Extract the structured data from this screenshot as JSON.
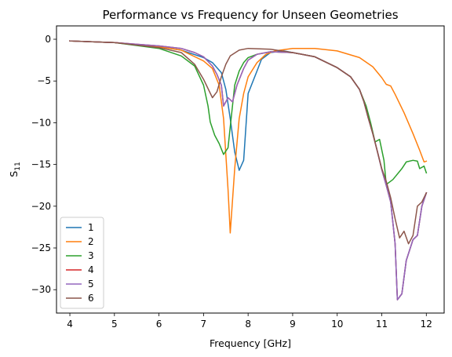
{
  "chart_data": {
    "type": "line",
    "title": "Performance vs Frequency for Unseen Geometries",
    "xlabel": "Frequency [GHz]",
    "ylabel_main": "S",
    "ylabel_sub": "11",
    "xlim": [
      3.7,
      12.4
    ],
    "ylim": [
      -32.8,
      1.6
    ],
    "xticks": [
      4,
      5,
      6,
      7,
      8,
      9,
      10,
      11,
      12
    ],
    "xtick_labels": [
      "4",
      "5",
      "6",
      "7",
      "8",
      "9",
      "10",
      "11",
      "12"
    ],
    "yticks": [
      0,
      -5,
      -10,
      -15,
      -20,
      -25,
      -30
    ],
    "ytick_labels": [
      "0",
      "−5",
      "−10",
      "−15",
      "−20",
      "−25",
      "−30"
    ],
    "grid": false,
    "legend_position": "lower-left",
    "series": [
      {
        "name": "1",
        "color": "#1f77b4",
        "points": [
          [
            4.0,
            -0.2
          ],
          [
            5.0,
            -0.4
          ],
          [
            6.0,
            -0.9
          ],
          [
            6.5,
            -1.3
          ],
          [
            7.0,
            -2.2
          ],
          [
            7.2,
            -2.8
          ],
          [
            7.4,
            -4.0
          ],
          [
            7.5,
            -6.0
          ],
          [
            7.6,
            -9.5
          ],
          [
            7.7,
            -13.5
          ],
          [
            7.8,
            -15.7
          ],
          [
            7.9,
            -14.5
          ],
          [
            8.0,
            -6.5
          ],
          [
            8.2,
            -3.8
          ],
          [
            8.3,
            -2.4
          ],
          [
            8.5,
            -1.6
          ],
          [
            8.8,
            -1.4
          ],
          [
            9.0,
            -1.6
          ],
          [
            9.5,
            -2.1
          ],
          [
            10.0,
            -3.4
          ],
          [
            10.3,
            -4.5
          ],
          [
            10.5,
            -6.0
          ],
          [
            10.6,
            -7.5
          ],
          [
            10.7,
            -9.5
          ],
          [
            10.8,
            -11.3
          ],
          [
            10.9,
            -13.4
          ],
          [
            11.0,
            -15.6
          ],
          [
            11.1,
            -17.5
          ],
          [
            11.2,
            -19.5
          ],
          [
            11.3,
            -24.5
          ],
          [
            11.35,
            -31.2
          ],
          [
            11.45,
            -30.5
          ],
          [
            11.55,
            -26.5
          ],
          [
            11.7,
            -24.0
          ],
          [
            11.8,
            -23.5
          ],
          [
            11.9,
            -20.0
          ],
          [
            12.0,
            -18.4
          ]
        ]
      },
      {
        "name": "2",
        "color": "#ff7f0e",
        "points": [
          [
            4.0,
            -0.2
          ],
          [
            5.0,
            -0.4
          ],
          [
            6.0,
            -0.9
          ],
          [
            6.5,
            -1.3
          ],
          [
            7.0,
            -2.6
          ],
          [
            7.2,
            -3.5
          ],
          [
            7.35,
            -5.5
          ],
          [
            7.45,
            -9.5
          ],
          [
            7.55,
            -18.0
          ],
          [
            7.6,
            -23.2
          ],
          [
            7.7,
            -15.5
          ],
          [
            7.8,
            -9.5
          ],
          [
            7.9,
            -6.5
          ],
          [
            8.0,
            -4.5
          ],
          [
            8.2,
            -2.8
          ],
          [
            8.4,
            -1.8
          ],
          [
            8.6,
            -1.4
          ],
          [
            9.0,
            -1.1
          ],
          [
            9.5,
            -1.1
          ],
          [
            10.0,
            -1.4
          ],
          [
            10.5,
            -2.2
          ],
          [
            10.8,
            -3.3
          ],
          [
            11.0,
            -4.6
          ],
          [
            11.1,
            -5.4
          ],
          [
            11.2,
            -5.6
          ],
          [
            11.3,
            -6.6
          ],
          [
            11.5,
            -8.8
          ],
          [
            11.7,
            -11.3
          ],
          [
            11.85,
            -13.3
          ],
          [
            11.95,
            -14.7
          ],
          [
            12.0,
            -14.6
          ]
        ]
      },
      {
        "name": "3",
        "color": "#2ca02c",
        "points": [
          [
            4.0,
            -0.2
          ],
          [
            5.0,
            -0.4
          ],
          [
            6.0,
            -1.1
          ],
          [
            6.5,
            -2.0
          ],
          [
            6.8,
            -3.2
          ],
          [
            7.0,
            -5.5
          ],
          [
            7.1,
            -8.0
          ],
          [
            7.15,
            -9.9
          ],
          [
            7.25,
            -11.5
          ],
          [
            7.35,
            -12.5
          ],
          [
            7.45,
            -13.8
          ],
          [
            7.55,
            -13.0
          ],
          [
            7.6,
            -10.5
          ],
          [
            7.7,
            -5.5
          ],
          [
            7.8,
            -3.8
          ],
          [
            7.9,
            -2.8
          ],
          [
            8.0,
            -2.2
          ],
          [
            8.2,
            -1.8
          ],
          [
            8.5,
            -1.5
          ],
          [
            9.0,
            -1.6
          ],
          [
            9.5,
            -2.1
          ],
          [
            10.0,
            -3.4
          ],
          [
            10.3,
            -4.5
          ],
          [
            10.5,
            -6.0
          ],
          [
            10.65,
            -8.0
          ],
          [
            10.75,
            -10.0
          ],
          [
            10.85,
            -12.3
          ],
          [
            10.95,
            -12.0
          ],
          [
            11.05,
            -14.5
          ],
          [
            11.1,
            -17.4
          ],
          [
            11.25,
            -16.8
          ],
          [
            11.45,
            -15.5
          ],
          [
            11.55,
            -14.7
          ],
          [
            11.7,
            -14.5
          ],
          [
            11.8,
            -14.6
          ],
          [
            11.85,
            -15.5
          ],
          [
            11.95,
            -15.2
          ],
          [
            12.0,
            -16.0
          ]
        ]
      },
      {
        "name": "4",
        "color": "#d62728",
        "points": [
          [
            4.0,
            -0.2
          ],
          [
            5.0,
            -0.4
          ],
          [
            6.0,
            -0.8
          ],
          [
            6.5,
            -1.1
          ],
          [
            6.8,
            -1.6
          ],
          [
            7.0,
            -2.1
          ],
          [
            7.2,
            -3.2
          ],
          [
            7.3,
            -4.2
          ],
          [
            7.4,
            -5.5
          ],
          [
            7.45,
            -8.0
          ],
          [
            7.55,
            -7.0
          ],
          [
            7.65,
            -7.5
          ],
          [
            7.75,
            -5.5
          ],
          [
            7.9,
            -3.5
          ],
          [
            8.0,
            -2.5
          ],
          [
            8.2,
            -1.8
          ],
          [
            8.5,
            -1.5
          ],
          [
            9.0,
            -1.6
          ],
          [
            9.5,
            -2.1
          ],
          [
            10.0,
            -3.4
          ],
          [
            10.3,
            -4.5
          ],
          [
            10.5,
            -6.0
          ],
          [
            10.6,
            -7.5
          ],
          [
            10.7,
            -9.5
          ],
          [
            10.8,
            -11.3
          ],
          [
            10.9,
            -13.4
          ],
          [
            11.0,
            -15.6
          ],
          [
            11.1,
            -17.5
          ],
          [
            11.2,
            -19.5
          ],
          [
            11.3,
            -24.5
          ],
          [
            11.35,
            -31.2
          ],
          [
            11.45,
            -30.5
          ],
          [
            11.55,
            -26.5
          ],
          [
            11.7,
            -24.0
          ],
          [
            11.8,
            -23.5
          ],
          [
            11.9,
            -20.0
          ],
          [
            12.0,
            -18.4
          ]
        ]
      },
      {
        "name": "5",
        "color": "#9467bd",
        "points": [
          [
            4.0,
            -0.2
          ],
          [
            5.0,
            -0.4
          ],
          [
            6.0,
            -0.8
          ],
          [
            6.5,
            -1.1
          ],
          [
            6.8,
            -1.6
          ],
          [
            7.0,
            -2.1
          ],
          [
            7.2,
            -3.2
          ],
          [
            7.3,
            -4.2
          ],
          [
            7.4,
            -5.5
          ],
          [
            7.45,
            -8.0
          ],
          [
            7.55,
            -7.0
          ],
          [
            7.65,
            -7.5
          ],
          [
            7.75,
            -5.5
          ],
          [
            7.9,
            -3.5
          ],
          [
            8.0,
            -2.5
          ],
          [
            8.2,
            -1.8
          ],
          [
            8.5,
            -1.5
          ],
          [
            9.0,
            -1.6
          ],
          [
            9.5,
            -2.1
          ],
          [
            10.0,
            -3.4
          ],
          [
            10.3,
            -4.5
          ],
          [
            10.5,
            -6.0
          ],
          [
            10.6,
            -7.5
          ],
          [
            10.7,
            -9.5
          ],
          [
            10.8,
            -11.3
          ],
          [
            10.9,
            -13.4
          ],
          [
            11.0,
            -15.6
          ],
          [
            11.1,
            -17.5
          ],
          [
            11.2,
            -19.5
          ],
          [
            11.3,
            -24.5
          ],
          [
            11.35,
            -31.2
          ],
          [
            11.45,
            -30.5
          ],
          [
            11.55,
            -26.5
          ],
          [
            11.7,
            -24.0
          ],
          [
            11.8,
            -23.5
          ],
          [
            11.9,
            -20.0
          ],
          [
            12.0,
            -18.4
          ]
        ]
      },
      {
        "name": "6",
        "color": "#8c564b",
        "points": [
          [
            4.0,
            -0.2
          ],
          [
            5.0,
            -0.4
          ],
          [
            6.0,
            -1.0
          ],
          [
            6.5,
            -1.6
          ],
          [
            6.8,
            -3.0
          ],
          [
            7.0,
            -4.8
          ],
          [
            7.2,
            -7.0
          ],
          [
            7.3,
            -6.3
          ],
          [
            7.4,
            -4.5
          ],
          [
            7.5,
            -3.0
          ],
          [
            7.6,
            -2.0
          ],
          [
            7.8,
            -1.3
          ],
          [
            8.0,
            -1.1
          ],
          [
            8.5,
            -1.2
          ],
          [
            9.0,
            -1.6
          ],
          [
            9.5,
            -2.1
          ],
          [
            10.0,
            -3.4
          ],
          [
            10.3,
            -4.5
          ],
          [
            10.5,
            -6.0
          ],
          [
            10.6,
            -7.5
          ],
          [
            10.7,
            -9.5
          ],
          [
            10.8,
            -11.3
          ],
          [
            10.9,
            -13.4
          ],
          [
            11.0,
            -15.5
          ],
          [
            11.1,
            -17.0
          ],
          [
            11.2,
            -19.0
          ],
          [
            11.3,
            -21.5
          ],
          [
            11.4,
            -23.8
          ],
          [
            11.5,
            -23.0
          ],
          [
            11.6,
            -24.5
          ],
          [
            11.7,
            -23.5
          ],
          [
            11.8,
            -20.0
          ],
          [
            11.9,
            -19.5
          ],
          [
            12.0,
            -18.4
          ]
        ]
      }
    ]
  }
}
